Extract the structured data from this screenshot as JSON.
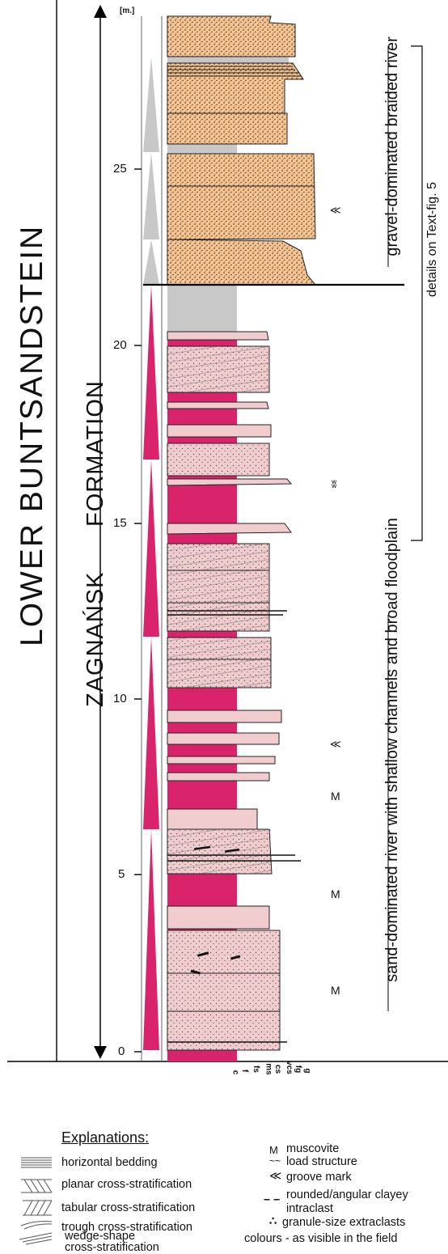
{
  "stratigraphy": {
    "group": "LOWER BUNTSANDSTEIN",
    "formation_name": "ZAGNAŃSK",
    "formation_word": "FORMATION"
  },
  "axis": {
    "unit": "[m.]",
    "ticks": [
      "0",
      "5",
      "10",
      "15",
      "20",
      "25"
    ]
  },
  "interpretation": {
    "upper": "gravel-dominated braided river",
    "lower": "sand-dominated river with shallow channels and broad floodplain",
    "details": "details on Text-fig. 5"
  },
  "grain_scale": [
    "c",
    "f",
    "fs",
    "ms",
    "cs",
    "vcs",
    "fg",
    "g"
  ],
  "symbols": {
    "groove": "≪",
    "load": "ʬ",
    "muscovite": [
      "M",
      "M",
      "M"
    ]
  },
  "legend": {
    "title": "Explanations:",
    "left": [
      "horizontal bedding",
      "planar cross-stratification",
      "tabular cross-stratification",
      "trough cross-stratification",
      "wedge-shape",
      "cross-stratification"
    ],
    "right": [
      {
        "symbol": "M",
        "label": "muscovite"
      },
      {
        "symbol": "~~",
        "label": "load structure"
      },
      {
        "symbol": "≪",
        "label": "groove mark"
      },
      {
        "symbol": "– –",
        "label": "rounded/angular clayey"
      },
      {
        "symbol": "",
        "label": "intraclast"
      },
      {
        "symbol": "∴",
        "label": "granule-size extraclasts"
      }
    ],
    "footer": "colours - as visible in the field"
  },
  "colors": {
    "sand_pink": "#f1cccf",
    "mud_magenta": "#d9246b",
    "gravel_orange": "#f7c593",
    "grey": "#c8c8c8",
    "triangle_grey": "#c8c8c8"
  }
}
